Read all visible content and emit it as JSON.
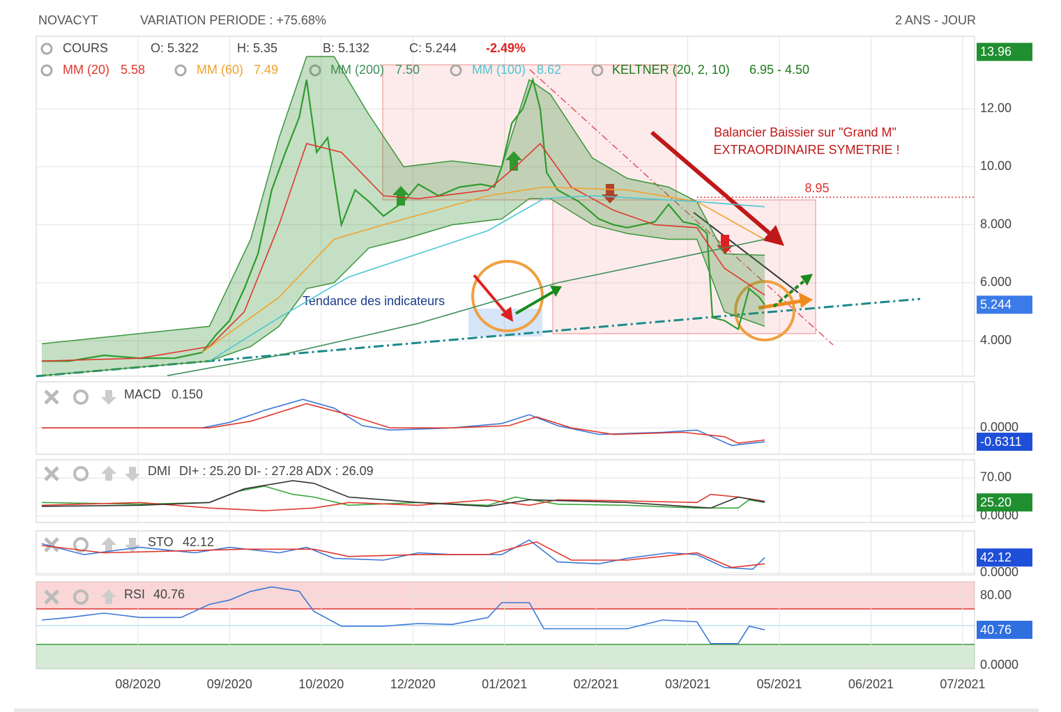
{
  "chart_data": [
    {
      "type": "line",
      "title": "NOVACYT",
      "subtitle": "VARIATION PERIODE : +75.68%",
      "period": "2 ANS - JOUR",
      "quote": {
        "open": "O: 5.322",
        "high": "H: 5.35",
        "low": "B: 5.132",
        "close": "C: 5.244",
        "change": "-2.49%"
      },
      "xlim": [
        -0.11,
        10.13
      ],
      "xticks": [
        {
          "value": 1,
          "label": "08/2020"
        },
        {
          "value": 2,
          "label": "09/2020"
        },
        {
          "value": 3,
          "label": "10/2020"
        },
        {
          "value": 4,
          "label": "12/2020"
        },
        {
          "value": 5,
          "label": "01/2021"
        },
        {
          "value": 6,
          "label": "02/2021"
        },
        {
          "value": 7,
          "label": "03/2021"
        },
        {
          "value": 8,
          "label": "05/2021"
        },
        {
          "value": 9,
          "label": "06/2021"
        },
        {
          "value": 10,
          "label": "07/2021"
        }
      ],
      "ylim": [
        2.78,
        14.5
      ],
      "yticks": [
        {
          "value": 4,
          "label": "4.000"
        },
        {
          "value": 6,
          "label": "6.000"
        },
        {
          "value": 8,
          "label": "8.000"
        },
        {
          "value": 10,
          "label": "10.00"
        },
        {
          "value": 12,
          "label": "12.00"
        }
      ],
      "grid": true,
      "band": {
        "name": "KELTNER (20, 2, 10)",
        "legend_value": "6.95 - 4.50",
        "color": "#3c963c",
        "x": [
          -0.05,
          1.78,
          2.23,
          2.54,
          2.84,
          3.14,
          3.52,
          3.9,
          4.43,
          4.97,
          5.27,
          5.5,
          5.96,
          6.34,
          6.79,
          7.1,
          7.4,
          7.84
        ],
        "upper": [
          3.9,
          4.5,
          7.5,
          11,
          13.8,
          13.8,
          11.8,
          10.0,
          10.2,
          10.0,
          13.0,
          12.5,
          10.3,
          9.6,
          9.3,
          8.8,
          7.0,
          6.95
        ],
        "lower": [
          2.8,
          3.3,
          3.8,
          4.5,
          5.8,
          6.0,
          7.2,
          7.5,
          8.0,
          8.2,
          8.9,
          8.9,
          8.0,
          7.7,
          7.5,
          7.5,
          5.0,
          4.5
        ]
      },
      "series": [
        {
          "name": "COURS",
          "color": "#2e9b2e",
          "x": [
            -0.05,
            0.25,
            0.63,
            1.02,
            1.4,
            1.7,
            1.85,
            2.0,
            2.16,
            2.31,
            2.46,
            2.61,
            2.76,
            2.84,
            2.95,
            3.07,
            3.22,
            3.37,
            3.52,
            3.68,
            3.9,
            4.06,
            4.28,
            4.51,
            4.74,
            4.89,
            4.97,
            5.08,
            5.2,
            5.31,
            5.39,
            5.46,
            5.58,
            5.81,
            6.03,
            6.19,
            6.34,
            6.49,
            6.64,
            6.79,
            6.95,
            7.1,
            7.21,
            7.27,
            7.4,
            7.55,
            7.67,
            7.78,
            7.84
          ],
          "values": [
            3.3,
            3.3,
            3.5,
            3.4,
            3.4,
            3.6,
            4.2,
            4.7,
            5.8,
            7.0,
            9.2,
            10.5,
            11.7,
            13.0,
            10.5,
            11.0,
            8.0,
            9.2,
            8.8,
            8.3,
            8.8,
            9.4,
            9.0,
            9.3,
            9.4,
            9.3,
            10.0,
            11.5,
            12.0,
            13.0,
            12.0,
            9.8,
            9.2,
            8.8,
            8.2,
            8.0,
            7.9,
            8.0,
            8.1,
            8.7,
            8.1,
            8.0,
            7.7,
            4.8,
            4.7,
            4.4,
            5.8,
            5.5,
            5.244
          ]
        },
        {
          "name": "MM (20)",
          "legend_value": 5.58,
          "color": "#e0362c",
          "x": [
            -0.05,
            1.02,
            1.78,
            2.16,
            2.54,
            2.84,
            3.22,
            3.68,
            4.06,
            4.82,
            5.12,
            5.39,
            5.73,
            6.19,
            6.64,
            7.1,
            7.4,
            7.84
          ],
          "values": [
            3.3,
            3.4,
            3.8,
            5.0,
            8.0,
            10.8,
            10.5,
            9.0,
            8.9,
            9.2,
            10.0,
            10.8,
            9.3,
            8.5,
            8.0,
            7.9,
            6.5,
            5.58
          ]
        },
        {
          "name": "MM (60)",
          "legend_value": 7.49,
          "color": "#f2a22c",
          "x": [
            1.7,
            2.54,
            3.14,
            3.68,
            4.82,
            5.43,
            6.34,
            7.1,
            7.84
          ],
          "values": [
            3.6,
            5.5,
            7.5,
            8.0,
            9.0,
            9.3,
            9.2,
            8.8,
            7.49
          ]
        },
        {
          "name": "MM (200)",
          "legend_value": {
            "value": 7.5,
            "label": "7.50"
          },
          "color": "#3d8f5c",
          "x": [
            1.32,
            2.54,
            4.06,
            5.58,
            7.1,
            7.84
          ],
          "values": [
            2.8,
            3.5,
            4.6,
            6.0,
            7.0,
            7.5
          ]
        },
        {
          "name": "MM (100)",
          "legend_value": 8.62,
          "color": "#4cc6d2",
          "x": [
            1.78,
            2.54,
            3.3,
            4.06,
            4.82,
            5.43,
            5.96,
            7.1,
            7.84
          ],
          "values": [
            3.3,
            4.8,
            6.2,
            7.0,
            7.8,
            8.9,
            9.0,
            8.8,
            8.62
          ]
        }
      ],
      "level": 8.95,
      "annotations": [
        "Balancier Baissier sur \"Grand M\"",
        "EXTRAORDINAIRE SYMETRIE !",
        "Tendance des indicateurs"
      ],
      "badges": [
        {
          "value": 13.96,
          "color": "#1f8f2f"
        },
        {
          "value": 5.244,
          "color": "#3b7be8"
        }
      ]
    },
    {
      "type": "line",
      "title": "MACD",
      "reading": {
        "value": 0.15,
        "label": "0.150"
      },
      "ylim": [
        -1.2,
        2.1
      ],
      "yticks": [
        {
          "value": 0,
          "label": "0.0000"
        }
      ],
      "series": [
        {
          "color": "#3b78d8",
          "x": [
            -0.05,
            1.7,
            2.0,
            2.38,
            2.8,
            3.14,
            3.45,
            3.75,
            4.43,
            4.97,
            5.27,
            5.58,
            6.03,
            6.72,
            7.1,
            7.48,
            7.84
          ],
          "values": [
            0,
            0,
            0.25,
            0.8,
            1.3,
            0.9,
            0.1,
            -0.1,
            0,
            0.2,
            0.6,
            0.1,
            -0.3,
            -0.2,
            -0.1,
            -0.8,
            -0.6311
          ]
        },
        {
          "color": "#e0362c",
          "x": [
            -0.05,
            1.78,
            2.23,
            2.84,
            3.3,
            3.75,
            4.43,
            5.05,
            5.35,
            5.73,
            6.19,
            6.95,
            7.4,
            7.55,
            7.84
          ],
          "values": [
            0,
            0,
            0.3,
            1.1,
            0.6,
            0,
            0,
            0.1,
            0.5,
            0,
            -0.3,
            -0.2,
            -0.4,
            -0.7,
            -0.55
          ]
        }
      ],
      "badges": [
        {
          "value": -0.6311,
          "color": "#1e4fd8"
        }
      ]
    },
    {
      "type": "line",
      "title": "DMI",
      "reading": "DI+ : 25.20 DI- : 27.28 ADX : 26.09",
      "ylim": [
        -11.5,
        103.1
      ],
      "yticks": [
        {
          "value": 70,
          "label": "70.00"
        },
        {
          "value": 0,
          "label": "0.0000"
        }
      ],
      "series": [
        {
          "color": "#3aa53a",
          "x": [
            -0.05,
            1.02,
            1.78,
            2.08,
            2.38,
            2.69,
            2.92,
            3.3,
            4.06,
            4.82,
            5.12,
            5.58,
            6.34,
            7.1,
            7.55,
            7.67,
            7.84
          ],
          "values": [
            25,
            22,
            25,
            45,
            55,
            40,
            35,
            20,
            25,
            20,
            35,
            22,
            20,
            15,
            15,
            30,
            25.2
          ]
        },
        {
          "color": "#e0362c",
          "x": [
            -0.05,
            1.02,
            1.78,
            2.38,
            2.92,
            3.3,
            4.06,
            4.82,
            5.27,
            5.58,
            6.34,
            7.1,
            7.25,
            7.55,
            7.84
          ],
          "values": [
            20,
            25,
            15,
            10,
            15,
            25,
            20,
            30,
            20,
            30,
            28,
            25,
            40,
            35,
            27.28
          ]
        },
        {
          "color": "#333333",
          "x": [
            -0.05,
            1.02,
            1.78,
            2.16,
            2.69,
            2.92,
            3.3,
            4.06,
            4.82,
            5.27,
            6.34,
            7.25,
            7.55,
            7.84
          ],
          "values": [
            18,
            20,
            25,
            50,
            65,
            60,
            35,
            25,
            18,
            30,
            25,
            15,
            35,
            26.09
          ]
        }
      ],
      "badges": [
        {
          "value": {
            "value": 25.2,
            "label": "25.20"
          },
          "color": "#1f8f2f"
        }
      ]
    },
    {
      "type": "line",
      "title": "STO",
      "reading": 42.12,
      "ylim": [
        -5,
        115
      ],
      "yticks": [
        {
          "value": 0,
          "label": "0.0000"
        }
      ],
      "series": [
        {
          "color": "#3b78d8",
          "x": [
            -0.05,
            0.41,
            1.02,
            1.62,
            2.0,
            2.54,
            2.84,
            3.14,
            3.68,
            4.06,
            4.43,
            4.97,
            5.27,
            5.58,
            6.03,
            6.34,
            6.79,
            7.1,
            7.4,
            7.71,
            7.84
          ],
          "values": [
            80,
            50,
            70,
            55,
            70,
            55,
            70,
            40,
            35,
            55,
            50,
            50,
            90,
            30,
            25,
            40,
            55,
            50,
            15,
            10,
            42.12
          ]
        },
        {
          "color": "#e0362c",
          "x": [
            -0.05,
            0.63,
            1.4,
            2.16,
            2.92,
            3.3,
            4.06,
            4.82,
            5.35,
            5.73,
            6.34,
            7.1,
            7.48,
            7.84
          ],
          "values": [
            75,
            55,
            60,
            65,
            65,
            45,
            50,
            50,
            85,
            35,
            35,
            55,
            15,
            25
          ]
        }
      ],
      "badges": [
        {
          "value": 42.12,
          "color": "#1e4fd8"
        }
      ]
    },
    {
      "type": "line",
      "title": "RSI",
      "reading": 40.76,
      "ylim": [
        -4,
        96
      ],
      "yticks": [
        {
          "value": 80,
          "label": "80.00"
        },
        {
          "value": 0,
          "label": "0.0000"
        }
      ],
      "series": [
        {
          "color": "#3b78d8",
          "x": [
            -0.05,
            0.25,
            0.63,
            1.02,
            1.47,
            1.78,
            2.0,
            2.23,
            2.46,
            2.76,
            2.92,
            3.22,
            3.68,
            4.06,
            4.43,
            4.82,
            4.97,
            5.27,
            5.43,
            5.96,
            6.34,
            6.72,
            7.1,
            7.25,
            7.55,
            7.67,
            7.84
          ],
          "values": [
            52,
            55,
            60,
            55,
            55,
            70,
            75,
            85,
            90,
            85,
            62,
            45,
            45,
            48,
            47,
            55,
            72,
            72,
            42,
            42,
            42,
            52,
            50,
            25,
            25,
            45,
            40.76
          ]
        }
      ],
      "badges": [
        {
          "value": 40.76,
          "color": "#2f6fe0"
        }
      ]
    }
  ]
}
